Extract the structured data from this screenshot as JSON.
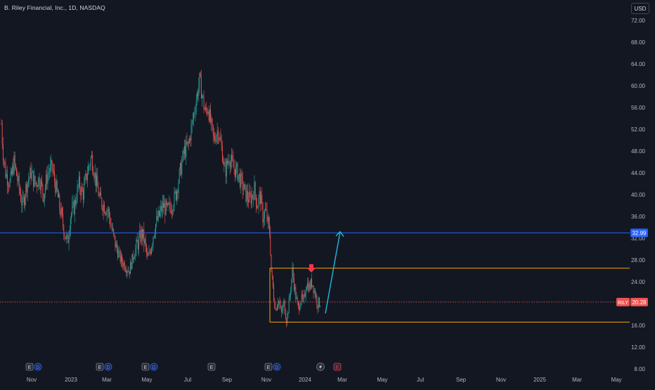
{
  "header": {
    "title": "B. Riley Financial, Inc., 1D, NASDAQ",
    "currency": "USD"
  },
  "colors": {
    "background": "#131722",
    "text": "#b2b5be",
    "up": "#26a69a",
    "down": "#ef5350",
    "blue_line": "#2962ff",
    "orange_box": "#f7a400",
    "arrow": "#22b8e0",
    "signal_arrow": "#f23645",
    "price_line": "#ef5350"
  },
  "chart_data": {
    "type": "candlestick",
    "symbol": "RILY",
    "ylim": [
      8,
      74
    ],
    "y_ticks": [
      "72.00",
      "68.00",
      "64.00",
      "60.00",
      "56.00",
      "52.00",
      "48.00",
      "44.00",
      "40.00",
      "36.00",
      "32.00",
      "28.00",
      "24.00",
      "20.00",
      "16.00",
      "12.00",
      "8.00"
    ],
    "x_ticks": [
      "Nov",
      "2023",
      "Mar",
      "May",
      "Jul",
      "Sep",
      "Nov",
      "2024",
      "Mar",
      "May",
      "Jul",
      "Sep",
      "Nov",
      "2025",
      "Mar",
      "May"
    ],
    "last_price": {
      "symbol": "RILY",
      "value": "20.28"
    },
    "horizontal_line": {
      "value": 32.99,
      "label": "32.99"
    },
    "range_box": {
      "top": 26.5,
      "bottom": 16.6
    },
    "projection_arrow": {
      "from": 18.2,
      "to": 33.2
    },
    "path_anchors": [
      [
        0,
        46
      ],
      [
        2,
        53
      ],
      [
        4,
        48
      ],
      [
        8,
        44
      ],
      [
        14,
        42
      ],
      [
        20,
        46
      ],
      [
        26,
        42
      ],
      [
        32,
        38
      ],
      [
        38,
        42
      ],
      [
        44,
        44
      ],
      [
        50,
        42
      ],
      [
        56,
        43
      ],
      [
        62,
        40
      ],
      [
        68,
        44
      ],
      [
        74,
        45
      ],
      [
        80,
        41
      ],
      [
        86,
        37
      ],
      [
        92,
        33
      ],
      [
        96,
        31
      ],
      [
        100,
        36
      ],
      [
        106,
        38
      ],
      [
        112,
        42
      ],
      [
        118,
        40
      ],
      [
        124,
        44
      ],
      [
        130,
        47
      ],
      [
        136,
        43
      ],
      [
        142,
        39
      ],
      [
        148,
        38
      ],
      [
        154,
        37
      ],
      [
        160,
        33
      ],
      [
        166,
        30
      ],
      [
        172,
        28
      ],
      [
        178,
        27
      ],
      [
        184,
        26
      ],
      [
        190,
        29
      ],
      [
        196,
        31
      ],
      [
        202,
        33
      ],
      [
        206,
        31
      ],
      [
        210,
        28
      ],
      [
        214,
        30
      ],
      [
        220,
        34
      ],
      [
        226,
        36
      ],
      [
        232,
        38
      ],
      [
        238,
        37
      ],
      [
        244,
        38
      ],
      [
        250,
        40
      ],
      [
        256,
        44
      ],
      [
        262,
        48
      ],
      [
        268,
        49
      ],
      [
        272,
        52
      ],
      [
        276,
        55
      ],
      [
        280,
        58
      ],
      [
        284,
        61
      ],
      [
        288,
        58
      ],
      [
        292,
        55
      ],
      [
        296,
        56
      ],
      [
        300,
        53
      ],
      [
        304,
        50
      ],
      [
        310,
        52
      ],
      [
        316,
        48
      ],
      [
        320,
        44
      ],
      [
        326,
        47
      ],
      [
        332,
        45
      ],
      [
        338,
        44
      ],
      [
        344,
        42
      ],
      [
        350,
        40
      ],
      [
        356,
        39
      ],
      [
        362,
        41
      ],
      [
        366,
        38
      ],
      [
        370,
        40
      ],
      [
        374,
        36
      ],
      [
        378,
        37
      ],
      [
        382,
        34
      ],
      [
        384,
        33
      ],
      [
        386,
        26
      ],
      [
        389,
        22
      ],
      [
        392,
        19
      ],
      [
        396,
        21
      ],
      [
        400,
        18
      ],
      [
        404,
        20
      ],
      [
        408,
        17
      ],
      [
        412,
        21
      ],
      [
        416,
        26
      ],
      [
        420,
        22
      ],
      [
        424,
        19
      ],
      [
        428,
        21
      ],
      [
        432,
        20
      ],
      [
        436,
        24
      ],
      [
        440,
        23
      ],
      [
        444,
        24
      ],
      [
        448,
        22
      ],
      [
        452,
        20
      ],
      [
        456,
        20.3
      ]
    ],
    "event_markers": [
      {
        "x": 48,
        "icons": [
          "E",
          "D"
        ]
      },
      {
        "x": 148,
        "icons": [
          "E",
          "D"
        ]
      },
      {
        "x": 213,
        "icons": [
          "E",
          "D"
        ]
      },
      {
        "x": 301,
        "icons": [
          "E"
        ]
      },
      {
        "x": 388,
        "icons": [
          "E",
          "D"
        ]
      },
      {
        "x": 456,
        "icons": [
          "lightning"
        ]
      },
      {
        "x": 480,
        "icons": [
          "E"
        ]
      }
    ]
  }
}
